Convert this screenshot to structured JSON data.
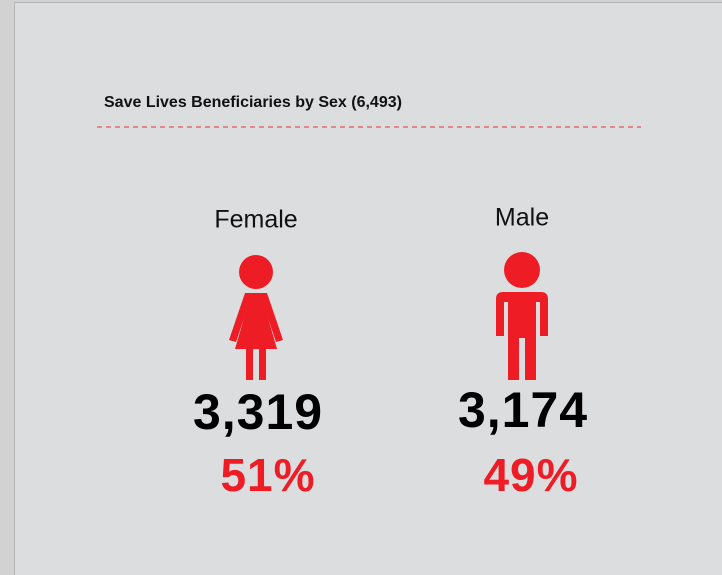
{
  "title": "Save Lives Beneficiaries by Sex (6,493)",
  "groups": [
    {
      "label": "Female",
      "count": "3,319",
      "percent": "51%"
    },
    {
      "label": "Male",
      "count": "3,174",
      "percent": "49%"
    }
  ]
}
